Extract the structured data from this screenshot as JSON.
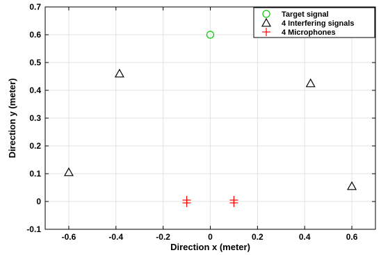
{
  "chart_data": {
    "type": "scatter",
    "xlabel": "Direction x (meter)",
    "ylabel": "Direction y (meter)",
    "xlim": [
      -0.7,
      0.7
    ],
    "ylim": [
      -0.1,
      0.7
    ],
    "xticks": [
      -0.6,
      -0.4,
      -0.2,
      0,
      0.2,
      0.4,
      0.6
    ],
    "xtick_labels": [
      "-0.6",
      "-0.4",
      "-0.2",
      "0",
      "0.2",
      "0.4",
      "0.6"
    ],
    "yticks": [
      -0.1,
      0,
      0.1,
      0.2,
      0.3,
      0.4,
      0.5,
      0.6,
      0.7
    ],
    "ytick_labels": [
      "-0.1",
      "0",
      "0.1",
      "0.2",
      "0.3",
      "0.4",
      "0.5",
      "0.6",
      "0.7"
    ],
    "grid": true,
    "legend_position": "top-right",
    "series": [
      {
        "name": "Target signal",
        "marker": "circle",
        "color": "#00cc00",
        "points": [
          [
            0.0,
            0.6
          ]
        ]
      },
      {
        "name": "4 Interfering signals",
        "marker": "triangle",
        "color": "#000000",
        "points": [
          [
            -0.6,
            0.105
          ],
          [
            -0.385,
            0.46
          ],
          [
            0.425,
            0.425
          ],
          [
            0.6,
            0.055
          ]
        ]
      },
      {
        "name": "4 Microphones",
        "marker": "plus",
        "color": "#ff0000",
        "points": [
          [
            -0.1,
            0.005
          ],
          [
            -0.1,
            -0.005
          ],
          [
            0.1,
            0.005
          ],
          [
            0.1,
            -0.005
          ]
        ]
      }
    ]
  }
}
